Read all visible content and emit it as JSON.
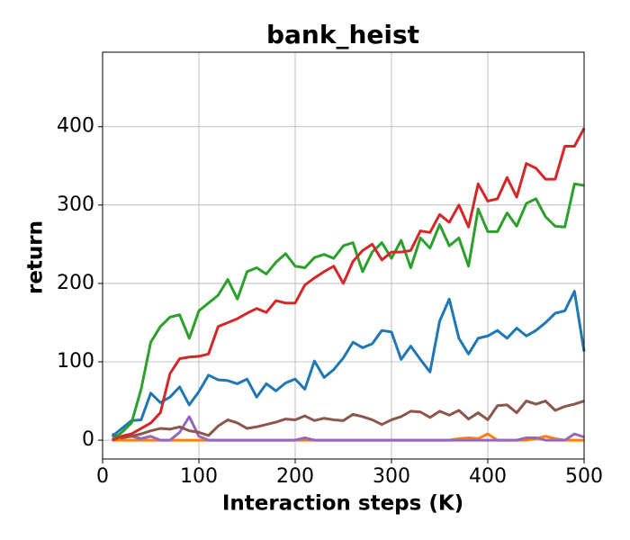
{
  "chart_data": {
    "type": "line",
    "title": "bank_heist",
    "x_label": "Interaction steps (K)",
    "y_label": "return",
    "x": [
      10,
      20,
      30,
      40,
      50,
      60,
      70,
      80,
      90,
      100,
      110,
      120,
      130,
      140,
      150,
      160,
      170,
      180,
      190,
      200,
      210,
      220,
      230,
      240,
      250,
      260,
      270,
      280,
      290,
      300,
      310,
      320,
      330,
      340,
      350,
      360,
      370,
      380,
      390,
      400,
      410,
      420,
      430,
      440,
      450,
      460,
      470,
      480,
      490,
      500
    ],
    "series": [
      {
        "color": "#ff7f0e",
        "values": [
          0,
          0,
          0,
          0,
          0,
          0,
          0,
          0,
          0,
          0,
          0,
          0,
          0,
          0,
          0,
          0,
          0,
          0,
          0,
          0,
          0,
          0,
          0,
          0,
          0,
          0,
          0,
          0,
          0,
          0,
          0,
          0,
          0,
          0,
          0,
          0,
          2,
          3,
          2,
          8,
          0,
          0,
          0,
          0,
          2,
          5,
          2,
          0,
          0,
          0
        ]
      },
      {
        "color": "#9467bd",
        "values": [
          5,
          3,
          5,
          2,
          5,
          0,
          0,
          10,
          30,
          5,
          0,
          0,
          0,
          0,
          0,
          0,
          0,
          0,
          0,
          0,
          3,
          0,
          0,
          0,
          0,
          0,
          0,
          0,
          0,
          0,
          0,
          0,
          0,
          0,
          0,
          0,
          0,
          0,
          0,
          0,
          0,
          0,
          0,
          3,
          3,
          0,
          0,
          0,
          8,
          4
        ]
      },
      {
        "color": "#8c564b",
        "values": [
          8,
          3,
          5,
          8,
          12,
          15,
          14,
          17,
          12,
          10,
          6,
          18,
          26,
          22,
          15,
          17,
          20,
          23,
          27,
          26,
          31,
          25,
          28,
          26,
          25,
          33,
          30,
          26,
          20,
          26,
          30,
          37,
          36,
          29,
          37,
          32,
          38,
          27,
          35,
          26,
          44,
          45,
          35,
          50,
          46,
          50,
          38,
          43,
          46,
          50
        ]
      },
      {
        "color": "#1f77b4",
        "values": [
          5,
          15,
          25,
          26,
          60,
          48,
          55,
          68,
          45,
          62,
          83,
          77,
          76,
          72,
          78,
          55,
          72,
          63,
          73,
          78,
          65,
          101,
          80,
          90,
          105,
          125,
          118,
          123,
          140,
          138,
          103,
          120,
          103,
          87,
          152,
          180,
          130,
          110,
          130,
          133,
          140,
          130,
          143,
          133,
          140,
          150,
          162,
          165,
          190,
          113
        ]
      },
      {
        "color": "#2ca02c",
        "values": [
          0,
          10,
          22,
          65,
          125,
          145,
          157,
          160,
          130,
          165,
          175,
          185,
          205,
          180,
          215,
          220,
          212,
          227,
          238,
          222,
          220,
          233,
          237,
          232,
          248,
          252,
          215,
          240,
          252,
          232,
          255,
          220,
          258,
          245,
          275,
          248,
          258,
          222,
          295,
          266,
          266,
          290,
          273,
          302,
          308,
          285,
          273,
          272,
          327,
          325
        ]
      },
      {
        "color": "#d62728",
        "values": [
          0,
          5,
          8,
          15,
          22,
          35,
          85,
          104,
          106,
          107,
          110,
          145,
          150,
          155,
          162,
          168,
          163,
          178,
          175,
          175,
          198,
          207,
          215,
          222,
          200,
          228,
          242,
          250,
          230,
          240,
          240,
          242,
          267,
          265,
          288,
          278,
          300,
          272,
          327,
          305,
          308,
          335,
          310,
          353,
          347,
          333,
          333,
          375,
          375,
          398
        ]
      }
    ],
    "xlim": [
      0,
      500
    ],
    "xticks": [
      0,
      100,
      200,
      300,
      400,
      500
    ],
    "ylim": [
      -24,
      495
    ],
    "yticks": [
      0,
      100,
      200,
      300,
      400
    ],
    "grid": true
  }
}
